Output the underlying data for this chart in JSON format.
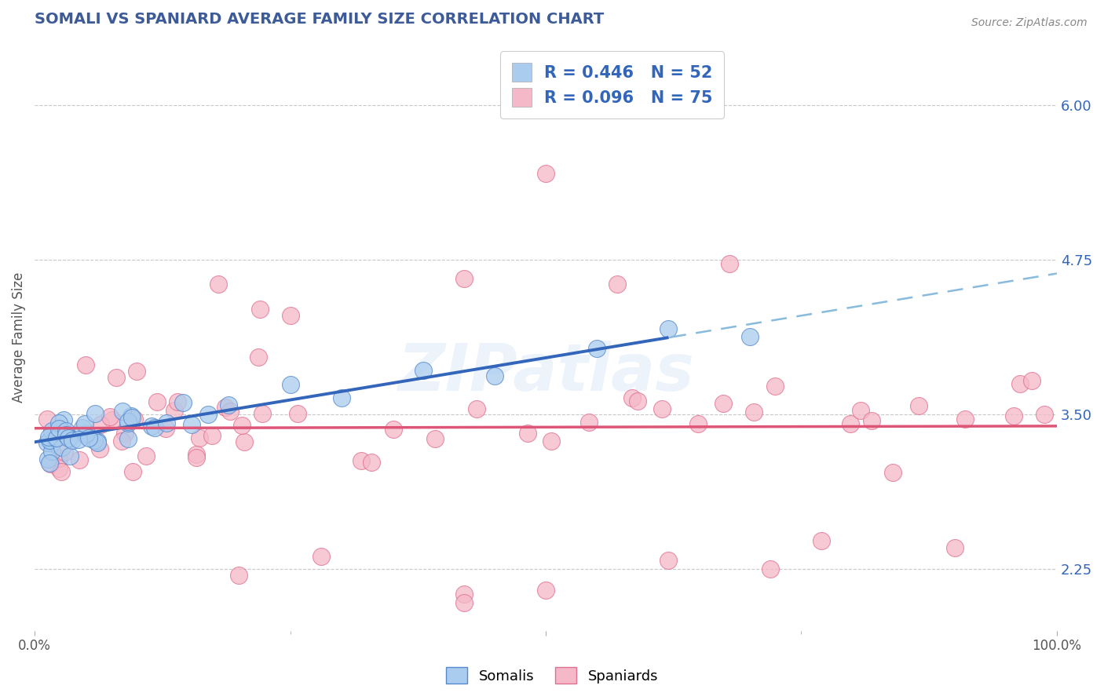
{
  "title": "SOMALI VS SPANIARD AVERAGE FAMILY SIZE CORRELATION CHART",
  "source": "Source: ZipAtlas.com",
  "ylabel": "Average Family Size",
  "xlim": [
    0.0,
    1.0
  ],
  "ylim": [
    1.75,
    6.5
  ],
  "yticks": [
    2.25,
    3.5,
    4.75,
    6.0
  ],
  "title_color": "#3d5a99",
  "title_fontsize": 14,
  "background_color": "#ffffff",
  "grid_color": "#c8c8c8",
  "source_color": "#888888",
  "somali_color": "#aaccee",
  "somali_edge": "#5588cc",
  "spaniard_color": "#f5b8c8",
  "spaniard_edge": "#e07090",
  "somali_line_color": "#3366bb",
  "spaniard_line_color": "#dd5577",
  "somali_dash_color": "#88bbdd",
  "R_somali": 0.446,
  "N_somali": 52,
  "R_spaniard": 0.096,
  "N_spaniard": 75,
  "legend_color": "#3366bb",
  "watermark_color": "#aaccee",
  "watermark_text": "ZIPatlas"
}
